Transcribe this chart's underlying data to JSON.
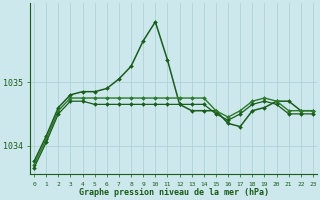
{
  "background_color": "#cce8ec",
  "grid_color": "#aacfd4",
  "line_color_dark": "#1a5c1a",
  "line_color_mid": "#2d7a2d",
  "x_labels": [
    "0",
    "1",
    "2",
    "3",
    "4",
    "5",
    "6",
    "7",
    "8",
    "9",
    "10",
    "11",
    "12",
    "13",
    "14",
    "15",
    "16",
    "17",
    "18",
    "19",
    "20",
    "21",
    "22",
    "23"
  ],
  "yticks": [
    1034,
    1035
  ],
  "xlabel_text": "Graphe pression niveau de la mer (hPa)",
  "series": [
    [
      1033.75,
      1034.15,
      1034.6,
      1034.8,
      1034.85,
      1034.85,
      1034.9,
      1035.05,
      1035.25,
      1035.65,
      1035.95,
      1035.35,
      1034.65,
      1034.55,
      1034.55,
      1034.55,
      1034.35,
      1034.3,
      1034.55,
      1034.6,
      1034.7,
      1034.7,
      1034.55,
      1034.55
    ],
    [
      1033.7,
      1034.1,
      1034.55,
      1034.75,
      1034.75,
      1034.75,
      1034.75,
      1034.75,
      1034.75,
      1034.75,
      1034.75,
      1034.75,
      1034.75,
      1034.75,
      1034.75,
      1034.55,
      1034.45,
      1034.55,
      1034.7,
      1034.75,
      1034.7,
      1034.55,
      1034.55,
      1034.55
    ],
    [
      1033.65,
      1034.05,
      1034.5,
      1034.7,
      1034.7,
      1034.65,
      1034.65,
      1034.65,
      1034.65,
      1034.65,
      1034.65,
      1034.65,
      1034.65,
      1034.65,
      1034.65,
      1034.5,
      1034.4,
      1034.5,
      1034.65,
      1034.7,
      1034.65,
      1034.5,
      1034.5,
      1034.5
    ]
  ],
  "ylim": [
    1033.55,
    1036.25
  ],
  "xlim": [
    -0.3,
    23.3
  ],
  "figsize": [
    3.2,
    2.0
  ],
  "dpi": 100
}
